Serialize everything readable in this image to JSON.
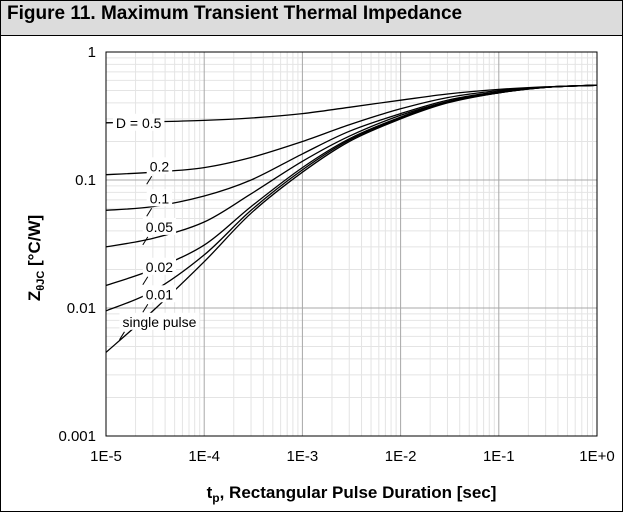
{
  "header": {
    "title": "Figure 11. Maximum Transient Thermal Impedance"
  },
  "chart_data": {
    "type": "line",
    "title": "Figure 11. Maximum Transient Thermal Impedance",
    "xlabel": {
      "main": "t",
      "sub": "p",
      "rest": ", Rectangular Pulse Duration [sec]"
    },
    "ylabel": {
      "main": "Z",
      "sub": "θJC",
      "rest": " [°C/W]"
    },
    "x_scale": "log",
    "y_scale": "log",
    "xlim": [
      1e-05,
      1
    ],
    "ylim": [
      0.001,
      1
    ],
    "x_ticks": [
      {
        "value": 1e-05,
        "label": "1E-5"
      },
      {
        "value": 0.0001,
        "label": "1E-4"
      },
      {
        "value": 0.001,
        "label": "1E-3"
      },
      {
        "value": 0.01,
        "label": "1E-2"
      },
      {
        "value": 0.1,
        "label": "1E-1"
      },
      {
        "value": 1,
        "label": "1E+0"
      }
    ],
    "y_ticks": [
      {
        "value": 0.001,
        "label": "0.001"
      },
      {
        "value": 0.01,
        "label": "0.01"
      },
      {
        "value": 0.1,
        "label": "0.1"
      },
      {
        "value": 1,
        "label": "1"
      }
    ],
    "grid": true,
    "legend": "none",
    "series": [
      {
        "label": "D = 0.5",
        "x": [
          1e-05,
          3e-05,
          0.0001,
          0.0003,
          0.001,
          0.003,
          0.01,
          0.03,
          0.1,
          0.3,
          1
        ],
        "y": [
          0.28,
          0.285,
          0.292,
          0.305,
          0.33,
          0.37,
          0.42,
          0.47,
          0.51,
          0.535,
          0.55
        ],
        "label_at": {
          "x": 2.15e-05,
          "y": 0.28
        }
      },
      {
        "label": "0.2",
        "x": [
          1e-05,
          3e-05,
          0.0001,
          0.0003,
          0.001,
          0.003,
          0.01,
          0.03,
          0.1,
          0.3,
          1
        ],
        "y": [
          0.11,
          0.115,
          0.125,
          0.15,
          0.2,
          0.27,
          0.36,
          0.44,
          0.5,
          0.53,
          0.55
        ],
        "label_at": {
          "x": 3.5e-05,
          "y": 0.128
        }
      },
      {
        "label": "0.1",
        "x": [
          1e-05,
          3e-05,
          0.0001,
          0.0003,
          0.001,
          0.003,
          0.01,
          0.03,
          0.1,
          0.3,
          1
        ],
        "y": [
          0.058,
          0.062,
          0.075,
          0.1,
          0.16,
          0.24,
          0.33,
          0.42,
          0.49,
          0.53,
          0.55
        ],
        "label_at": {
          "x": 3.5e-05,
          "y": 0.072
        }
      },
      {
        "label": "0.05",
        "x": [
          1e-05,
          3e-05,
          0.0001,
          0.0003,
          0.001,
          0.003,
          0.01,
          0.03,
          0.1,
          0.3,
          1
        ],
        "y": [
          0.03,
          0.035,
          0.047,
          0.078,
          0.14,
          0.22,
          0.32,
          0.41,
          0.49,
          0.53,
          0.55
        ],
        "label_at": {
          "x": 3.5e-05,
          "y": 0.043
        }
      },
      {
        "label": "0.02",
        "x": [
          1e-05,
          3e-05,
          0.0001,
          0.0003,
          0.001,
          0.003,
          0.01,
          0.03,
          0.1,
          0.3,
          1
        ],
        "y": [
          0.015,
          0.02,
          0.031,
          0.062,
          0.125,
          0.21,
          0.31,
          0.41,
          0.48,
          0.53,
          0.55
        ],
        "label_at": {
          "x": 3.5e-05,
          "y": 0.021
        }
      },
      {
        "label": "0.01",
        "x": [
          1e-05,
          3e-05,
          0.0001,
          0.0003,
          0.001,
          0.003,
          0.01,
          0.03,
          0.1,
          0.3,
          1
        ],
        "y": [
          0.0095,
          0.0135,
          0.026,
          0.058,
          0.12,
          0.205,
          0.305,
          0.405,
          0.48,
          0.53,
          0.55
        ],
        "label_at": {
          "x": 3.5e-05,
          "y": 0.0128
        }
      },
      {
        "label": "single pulse",
        "x": [
          1e-05,
          3e-05,
          0.0001,
          0.0003,
          0.001,
          0.003,
          0.01,
          0.03,
          0.1,
          0.3,
          1
        ],
        "y": [
          0.0045,
          0.0095,
          0.023,
          0.055,
          0.115,
          0.2,
          0.3,
          0.4,
          0.48,
          0.53,
          0.55
        ],
        "label_at": {
          "x": 3.5e-05,
          "y": 0.0078
        }
      }
    ]
  }
}
